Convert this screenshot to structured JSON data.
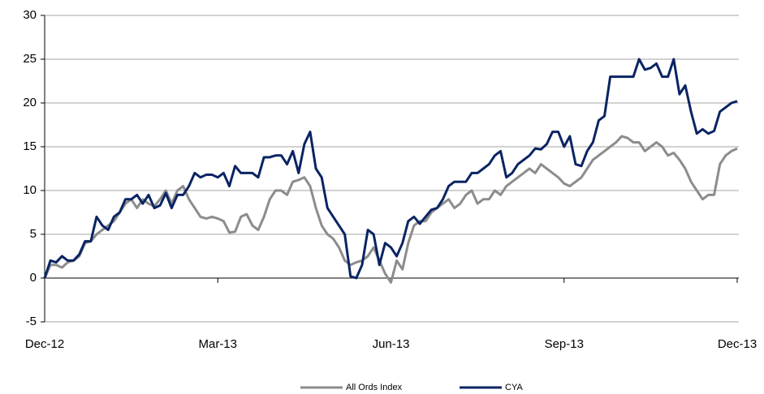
{
  "chart_data": {
    "type": "line",
    "categories": [
      "Dec-12",
      null,
      null,
      null,
      null,
      null,
      null,
      null,
      null,
      null,
      null,
      null,
      null,
      null,
      null,
      null,
      null,
      null,
      null,
      null,
      null,
      null,
      null,
      null,
      null,
      null,
      null,
      null,
      null,
      null,
      "Mar-13",
      null,
      null,
      null,
      null,
      null,
      null,
      null,
      null,
      null,
      null,
      null,
      null,
      null,
      null,
      null,
      null,
      null,
      null,
      null,
      null,
      null,
      null,
      null,
      null,
      null,
      null,
      null,
      null,
      null,
      "Jun-13",
      null,
      null,
      null,
      null,
      null,
      null,
      null,
      null,
      null,
      null,
      null,
      null,
      null,
      null,
      null,
      null,
      null,
      null,
      null,
      null,
      null,
      null,
      null,
      null,
      null,
      null,
      null,
      null,
      null,
      "Sep-13",
      null,
      null,
      null,
      null,
      null,
      null,
      null,
      null,
      null,
      null,
      null,
      null,
      null,
      null,
      null,
      null,
      null,
      null,
      null,
      null,
      null,
      null,
      null,
      null,
      null,
      null,
      null,
      null,
      null,
      "Dec-13"
    ],
    "series": [
      {
        "name": "All Ords Index",
        "color": "#8c8c8c",
        "values": [
          0,
          1.5,
          1.5,
          1.2,
          1.8,
          2,
          2.5,
          4,
          4.2,
          5,
          5.5,
          6,
          6.5,
          7.5,
          8.5,
          9,
          8,
          9,
          8.5,
          8.2,
          9,
          10,
          8.5,
          10,
          10.5,
          9,
          8,
          7,
          6.8,
          7,
          6.8,
          6.5,
          5.2,
          5.3,
          7,
          7.3,
          6,
          5.5,
          7,
          9,
          10,
          10,
          9.5,
          11,
          11.2,
          11.5,
          10.5,
          8,
          6,
          5,
          4.5,
          3.5,
          2,
          1.5,
          1.8,
          2,
          2.5,
          3.5,
          2,
          0.5,
          -0.5,
          2,
          1,
          4,
          6,
          6.5,
          6.5,
          7.5,
          8,
          8.5,
          9,
          8,
          8.5,
          9.5,
          10,
          8.5,
          9,
          9,
          10,
          9.5,
          10.5,
          11,
          11.5,
          12,
          12.5,
          12,
          13,
          12.5,
          12,
          11.5,
          10.8,
          10.5,
          11,
          11.5,
          12.5,
          13.5,
          14,
          14.5,
          15,
          15.5,
          16.2,
          16,
          15.5,
          15.5,
          14.5,
          15,
          15.5,
          15,
          14,
          14.3,
          13.5,
          12.5,
          11,
          10,
          9,
          9.5,
          9.5,
          13,
          14,
          14.5,
          14.8
        ]
      },
      {
        "name": "CYA",
        "color": "#0a2463",
        "values": [
          0,
          2,
          1.8,
          2.5,
          2,
          2,
          2.7,
          4.2,
          4.2,
          7,
          6,
          5.5,
          7,
          7.5,
          9,
          9,
          9.5,
          8.5,
          9.5,
          8,
          8.3,
          9.7,
          8,
          9.5,
          9.5,
          10.5,
          12,
          11.5,
          11.8,
          11.8,
          11.5,
          12,
          10.5,
          12.8,
          12,
          12,
          12,
          11.5,
          13.8,
          13.8,
          14,
          14,
          13,
          14.5,
          12,
          15.3,
          16.7,
          12.5,
          11.5,
          8,
          7,
          6,
          5,
          0.2,
          0,
          1.5,
          5.5,
          5,
          1.5,
          4,
          3.5,
          2.5,
          4,
          6.5,
          7,
          6.2,
          7,
          7.8,
          8,
          9,
          10.5,
          11,
          11,
          11,
          12,
          12,
          12.5,
          13,
          14,
          14.5,
          11.5,
          12,
          13,
          13.5,
          14,
          14.8,
          14.7,
          15.3,
          16.7,
          16.7,
          15,
          16.2,
          13,
          12.8,
          14.5,
          15.5,
          18,
          18.5,
          23,
          23,
          23,
          23,
          23,
          25,
          23.8,
          24,
          24.5,
          23,
          23,
          25,
          21,
          22,
          19,
          16.5,
          17,
          16.5,
          16.8,
          19,
          19.5,
          20,
          20.2
        ]
      }
    ],
    "ylim": [
      -5,
      30
    ],
    "yticks": [
      -5,
      0,
      5,
      10,
      15,
      20,
      25,
      30
    ],
    "grid": true
  }
}
